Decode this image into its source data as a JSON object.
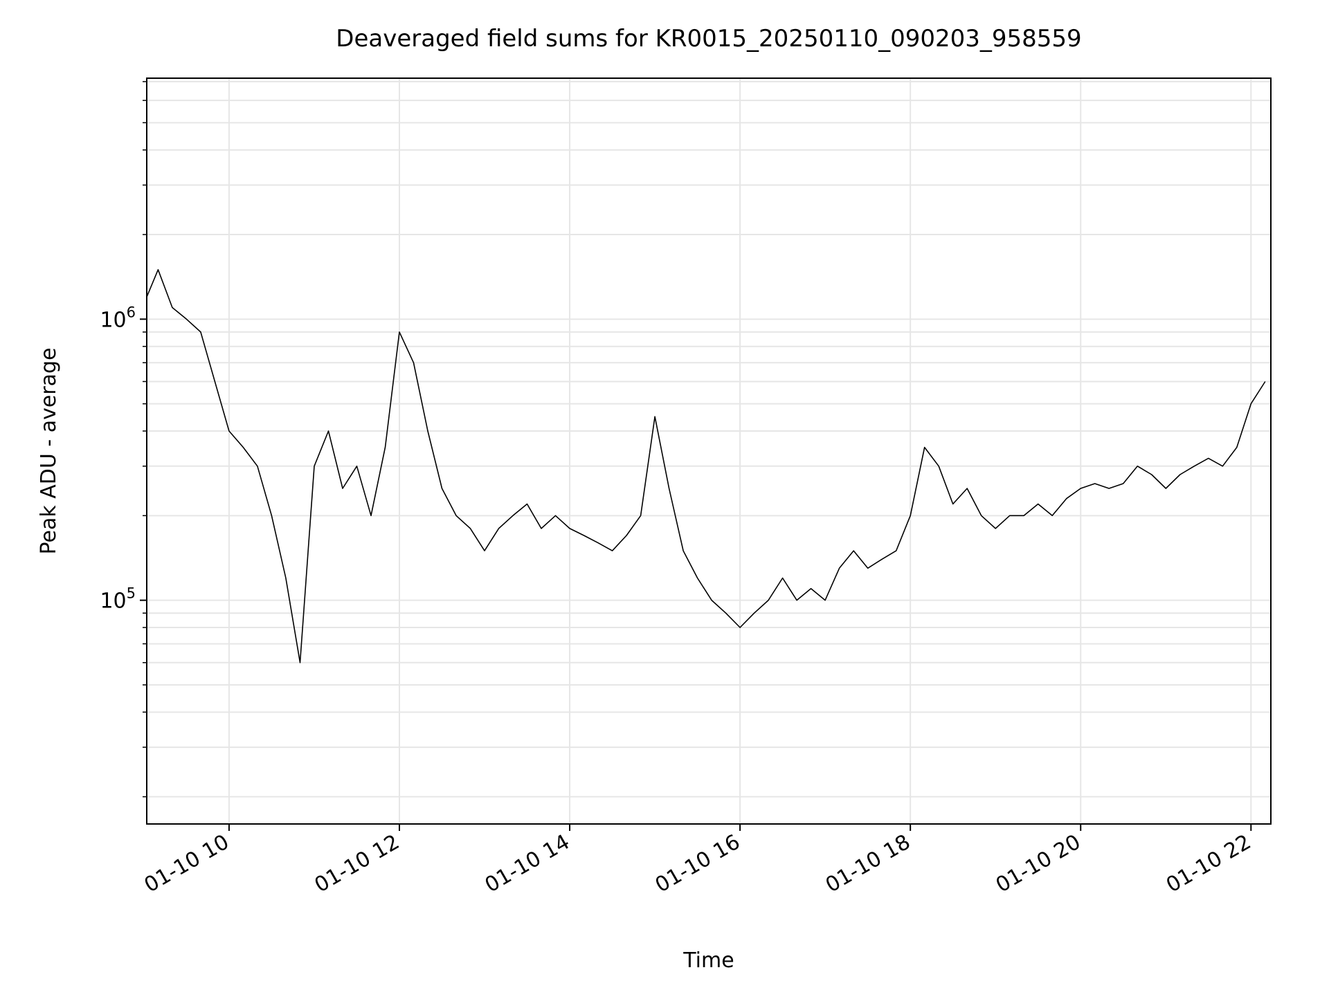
{
  "chart_data": {
    "type": "line",
    "title": "Deaveraged field sums for KR0015_20250110_090203_958559",
    "xlabel": "Time",
    "ylabel": "Peak ADU - average",
    "x_axis_kind": "time",
    "xlim": [
      "2025-01-10 09:02",
      "2025-01-10 22:14"
    ],
    "xticks": [
      {
        "value": "2025-01-10 10:00",
        "label": "01-10 10"
      },
      {
        "value": "2025-01-10 12:00",
        "label": "01-10 12"
      },
      {
        "value": "2025-01-10 14:00",
        "label": "01-10 14"
      },
      {
        "value": "2025-01-10 16:00",
        "label": "01-10 16"
      },
      {
        "value": "2025-01-10 18:00",
        "label": "01-10 18"
      },
      {
        "value": "2025-01-10 20:00",
        "label": "01-10 20"
      },
      {
        "value": "2025-01-10 22:00",
        "label": "01-10 22"
      }
    ],
    "y_scale": "log",
    "ylim": [
      16000,
      7200000
    ],
    "yticks": [
      {
        "value": 100000,
        "base": "10",
        "exp": "5"
      },
      {
        "value": 1000000,
        "base": "10",
        "exp": "6"
      }
    ],
    "grid": true,
    "line_color": "#000000",
    "grid_color": "#e6e6e6",
    "series": [
      {
        "x": [
          "2025-01-10 09:02",
          "2025-01-10 09:10",
          "2025-01-10 09:20",
          "2025-01-10 09:30",
          "2025-01-10 09:40",
          "2025-01-10 09:50",
          "2025-01-10 10:00",
          "2025-01-10 10:10",
          "2025-01-10 10:20",
          "2025-01-10 10:30",
          "2025-01-10 10:40",
          "2025-01-10 10:50",
          "2025-01-10 11:00",
          "2025-01-10 11:10",
          "2025-01-10 11:20",
          "2025-01-10 11:30",
          "2025-01-10 11:40",
          "2025-01-10 11:50",
          "2025-01-10 12:00",
          "2025-01-10 12:10",
          "2025-01-10 12:20",
          "2025-01-10 12:30",
          "2025-01-10 12:40",
          "2025-01-10 12:50",
          "2025-01-10 13:00",
          "2025-01-10 13:10",
          "2025-01-10 13:20",
          "2025-01-10 13:30",
          "2025-01-10 13:40",
          "2025-01-10 13:50",
          "2025-01-10 14:00",
          "2025-01-10 14:10",
          "2025-01-10 14:20",
          "2025-01-10 14:30",
          "2025-01-10 14:40",
          "2025-01-10 14:50",
          "2025-01-10 15:00",
          "2025-01-10 15:10",
          "2025-01-10 15:20",
          "2025-01-10 15:30",
          "2025-01-10 15:40",
          "2025-01-10 15:50",
          "2025-01-10 16:00",
          "2025-01-10 16:10",
          "2025-01-10 16:20",
          "2025-01-10 16:30",
          "2025-01-10 16:40",
          "2025-01-10 16:50",
          "2025-01-10 17:00",
          "2025-01-10 17:10",
          "2025-01-10 17:20",
          "2025-01-10 17:30",
          "2025-01-10 17:40",
          "2025-01-10 17:50",
          "2025-01-10 18:00",
          "2025-01-10 18:10",
          "2025-01-10 18:20",
          "2025-01-10 18:30",
          "2025-01-10 18:40",
          "2025-01-10 18:50",
          "2025-01-10 19:00",
          "2025-01-10 19:10",
          "2025-01-10 19:20",
          "2025-01-10 19:30",
          "2025-01-10 19:40",
          "2025-01-10 19:50",
          "2025-01-10 20:00",
          "2025-01-10 20:10",
          "2025-01-10 20:20",
          "2025-01-10 20:30",
          "2025-01-10 20:40",
          "2025-01-10 20:50",
          "2025-01-10 21:00",
          "2025-01-10 21:10",
          "2025-01-10 21:20",
          "2025-01-10 21:30",
          "2025-01-10 21:40",
          "2025-01-10 21:50",
          "2025-01-10 22:00",
          "2025-01-10 22:10"
        ],
        "y": [
          1200000,
          1500000,
          1100000,
          1000000,
          900000,
          600000,
          400000,
          350000,
          300000,
          200000,
          120000,
          60000,
          300000,
          400000,
          250000,
          300000,
          200000,
          350000,
          900000,
          700000,
          400000,
          250000,
          200000,
          180000,
          150000,
          180000,
          200000,
          220000,
          180000,
          200000,
          180000,
          170000,
          160000,
          150000,
          170000,
          200000,
          450000,
          250000,
          150000,
          120000,
          100000,
          90000,
          80000,
          90000,
          100000,
          120000,
          100000,
          110000,
          100000,
          130000,
          150000,
          130000,
          140000,
          150000,
          200000,
          350000,
          300000,
          220000,
          250000,
          200000,
          180000,
          200000,
          200000,
          220000,
          200000,
          230000,
          250000,
          260000,
          250000,
          260000,
          300000,
          280000,
          250000,
          280000,
          300000,
          320000,
          300000,
          350000,
          500000,
          600000
        ]
      }
    ]
  }
}
